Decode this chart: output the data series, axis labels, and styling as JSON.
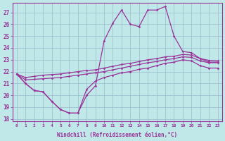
{
  "xlabel": "Windchill (Refroidissement éolien,°C)",
  "bg_color": "#c0e8e8",
  "grid_color": "#99bbcc",
  "line_color": "#993399",
  "hours": [
    0,
    1,
    2,
    3,
    4,
    5,
    6,
    7,
    8,
    9,
    10,
    11,
    12,
    13,
    14,
    15,
    16,
    17,
    18,
    19,
    20,
    21,
    22,
    23
  ],
  "curve_upper": [
    21.8,
    21.0,
    20.4,
    20.3,
    19.5,
    18.8,
    18.5,
    18.5,
    20.0,
    20.8,
    24.6,
    26.1,
    27.2,
    26.0,
    25.8,
    27.2,
    27.2,
    27.5,
    25.0,
    23.7,
    23.6,
    23.1,
    22.8,
    22.8
  ],
  "curve_lower": [
    21.8,
    21.0,
    20.4,
    20.3,
    19.5,
    18.8,
    18.5,
    18.5,
    20.5,
    21.2,
    21.5,
    21.7,
    21.9,
    22.0,
    22.2,
    22.3,
    22.5,
    22.7,
    22.8,
    23.0,
    22.9,
    22.5,
    22.3,
    22.3
  ],
  "line_top": [
    21.8,
    21.5,
    21.6,
    21.7,
    21.75,
    21.8,
    21.9,
    22.0,
    22.1,
    22.15,
    22.3,
    22.45,
    22.6,
    22.7,
    22.85,
    23.0,
    23.1,
    23.25,
    23.3,
    23.45,
    23.4,
    23.1,
    22.95,
    22.9
  ],
  "line_bot": [
    21.8,
    21.3,
    21.35,
    21.4,
    21.45,
    21.5,
    21.6,
    21.7,
    21.8,
    21.9,
    22.0,
    22.15,
    22.3,
    22.45,
    22.6,
    22.75,
    22.85,
    23.0,
    23.1,
    23.25,
    23.2,
    22.9,
    22.75,
    22.75
  ],
  "yticks": [
    18,
    19,
    20,
    21,
    22,
    23,
    24,
    25,
    26,
    27
  ],
  "xticks": [
    0,
    1,
    2,
    3,
    4,
    5,
    6,
    7,
    8,
    9,
    10,
    11,
    12,
    13,
    14,
    15,
    16,
    17,
    18,
    19,
    20,
    21,
    22,
    23
  ],
  "xlim": [
    -0.5,
    23.5
  ],
  "ylim": [
    17.8,
    27.8
  ]
}
